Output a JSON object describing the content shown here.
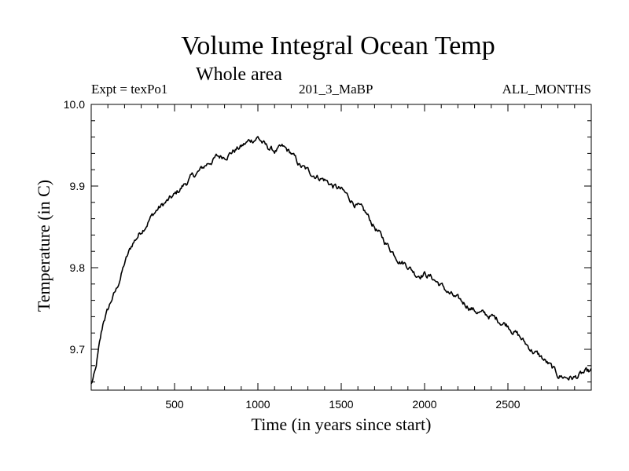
{
  "chart_data": {
    "type": "line",
    "title": "Volume Integral Ocean Temp",
    "subtitle": "Whole area",
    "experiment_label": "Expt = texPo1",
    "run_label": "201_3_MaBP",
    "months_label": "ALL_MONTHS",
    "xlabel": "Time (in years since start)",
    "ylabel": "Temperature (in C)",
    "xlim": [
      0,
      3000
    ],
    "ylim": [
      9.65,
      10.0
    ],
    "xticks": [
      500,
      1000,
      1500,
      2000,
      2500
    ],
    "xtick_labels": [
      "500",
      "1000",
      "1500",
      "2000",
      "2500"
    ],
    "yticks": [
      9.7,
      9.8,
      9.9,
      10.0
    ],
    "ytick_labels": [
      "9.7",
      "9.8",
      "9.9",
      "10.0"
    ],
    "grid": false,
    "series": [
      {
        "color": "#000000",
        "x": [
          0,
          25,
          50,
          75,
          100,
          125,
          150,
          175,
          200,
          250,
          300,
          350,
          400,
          450,
          500,
          550,
          600,
          650,
          700,
          750,
          800,
          850,
          900,
          950,
          1000,
          1050,
          1100,
          1150,
          1200,
          1250,
          1300,
          1350,
          1400,
          1450,
          1500,
          1550,
          1600,
          1650,
          1700,
          1750,
          1800,
          1850,
          1900,
          1950,
          2000,
          2050,
          2100,
          2150,
          2200,
          2250,
          2300,
          2350,
          2400,
          2450,
          2500,
          2550,
          2600,
          2650,
          2700,
          2750,
          2800,
          2850,
          2900,
          2950,
          3000
        ],
        "y": [
          9.657,
          9.672,
          9.705,
          9.735,
          9.748,
          9.762,
          9.772,
          9.788,
          9.805,
          9.83,
          9.845,
          9.86,
          9.872,
          9.88,
          9.888,
          9.9,
          9.91,
          9.918,
          9.928,
          9.935,
          9.937,
          9.943,
          9.948,
          9.955,
          9.96,
          9.948,
          9.943,
          9.946,
          9.94,
          9.925,
          9.918,
          9.913,
          9.908,
          9.9,
          9.895,
          9.885,
          9.875,
          9.865,
          9.85,
          9.835,
          9.822,
          9.81,
          9.803,
          9.792,
          9.793,
          9.787,
          9.778,
          9.768,
          9.76,
          9.755,
          9.748,
          9.743,
          9.74,
          9.735,
          9.73,
          9.72,
          9.708,
          9.698,
          9.69,
          9.68,
          9.668,
          9.666,
          9.665,
          9.67,
          9.672
        ]
      }
    ]
  }
}
